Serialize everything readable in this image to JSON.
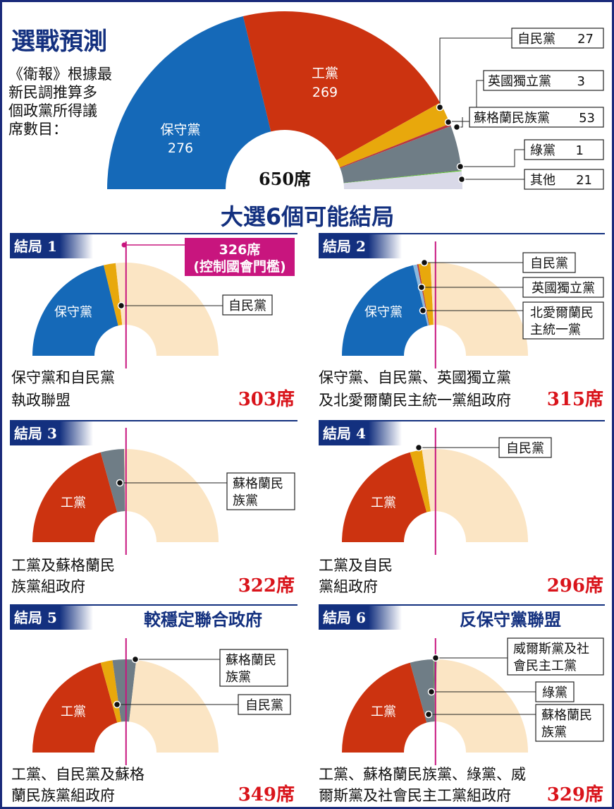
{
  "colors": {
    "conservative": "#1569b8",
    "labour": "#cc3310",
    "libdem": "#e8a80c",
    "ukip": "#b9363f",
    "snp": "#6f7d86",
    "green": "#5cbf2a",
    "other": "#d9d9e8",
    "dup": "#8bb8de",
    "remaining": "#fbe5c4",
    "navy": "#13307f",
    "magenta": "#c8157e",
    "red_text": "#d9141b"
  },
  "header": {
    "title": "選戰預測",
    "desc_lines": [
      "《衛報》根據最",
      "新民調推算多",
      "個政黨所得議",
      "席數目："
    ]
  },
  "chart_data": [
    {
      "type": "pie",
      "title": "選戰預測",
      "total_label": "650席",
      "total": 650,
      "slices": [
        {
          "name": "保守黨",
          "value": 276,
          "label_value": "276"
        },
        {
          "name": "工黨",
          "value": 269,
          "label_value": "269"
        },
        {
          "name": "自民黨",
          "value": 27,
          "label_value": "27"
        },
        {
          "name": "英國獨立黨",
          "value": 3,
          "label_value": "3"
        },
        {
          "name": "蘇格蘭民族黨",
          "value": 53,
          "label_value": "53"
        },
        {
          "name": "綠黨",
          "value": 1,
          "label_value": "1"
        },
        {
          "name": "其他",
          "value": 21,
          "label_value": "21"
        }
      ]
    },
    {
      "type": "pie",
      "panel": "結局 1",
      "slices": [
        {
          "name": "保守黨",
          "value": 276
        },
        {
          "name": "自民黨",
          "value": 27
        }
      ],
      "caption_lines": [
        "保守黨和自民黨",
        "執政聯盟"
      ],
      "total_label": "303席"
    },
    {
      "type": "pie",
      "panel": "結局 2",
      "slices": [
        {
          "name": "保守黨",
          "value": 276
        },
        {
          "name": "北愛爾蘭民主統一黨",
          "value": 9
        },
        {
          "name": "英國獨立黨",
          "value": 3
        },
        {
          "name": "自民黨",
          "value": 27
        }
      ],
      "caption_lines": [
        "保守黨、自民黨、英國獨立黨",
        "及北愛爾蘭民主統一黨組政府"
      ],
      "total_label": "315席"
    },
    {
      "type": "pie",
      "panel": "結局 3",
      "slices": [
        {
          "name": "工黨",
          "value": 269
        },
        {
          "name": "蘇格蘭民族黨",
          "value": 53
        }
      ],
      "caption_lines": [
        "工黨及蘇格蘭民",
        "族黨組政府"
      ],
      "total_label": "322席"
    },
    {
      "type": "pie",
      "panel": "結局 4",
      "slices": [
        {
          "name": "工黨",
          "value": 269
        },
        {
          "name": "自民黨",
          "value": 27
        }
      ],
      "caption_lines": [
        "工黨及自民",
        "黨組政府"
      ],
      "total_label": "296席"
    },
    {
      "type": "pie",
      "panel": "結局 5",
      "subtitle": "較穩定聯合政府",
      "slices": [
        {
          "name": "工黨",
          "value": 269
        },
        {
          "name": "自民黨",
          "value": 27
        },
        {
          "name": "蘇格蘭民族黨",
          "value": 53
        }
      ],
      "caption_lines": [
        "工黨、自民黨及蘇格",
        "蘭民族黨組政府"
      ],
      "total_label": "349席"
    },
    {
      "type": "pie",
      "panel": "結局 6",
      "subtitle": "反保守黨聯盟",
      "slices": [
        {
          "name": "工黨",
          "value": 269
        },
        {
          "name": "蘇格蘭民族黨",
          "value": 53
        },
        {
          "name": "綠黨",
          "value": 1
        },
        {
          "name": "威爾斯黨及社會民主工黨",
          "value": 6
        }
      ],
      "caption_lines": [
        "工黨、蘇格蘭民族黨、綠黨、威",
        "爾斯黨及社會民主工黨組政府"
      ],
      "total_label": "329席"
    }
  ],
  "main_labels": [
    {
      "name": "自民黨",
      "value": "27"
    },
    {
      "name": "英國獨立黨",
      "value": "3"
    },
    {
      "name": "蘇格蘭民族黨",
      "value": "53"
    },
    {
      "name": "綠黨",
      "value": "1"
    },
    {
      "name": "其他",
      "value": "21"
    }
  ],
  "section_title": "大選6個可能結局",
  "threshold": {
    "line1": "326席",
    "line2": "(控制國會門檻)"
  },
  "panels": [
    {
      "label": "結局 1",
      "callouts": [
        {
          "lines": [
            "自民黨"
          ]
        }
      ],
      "inner_labels": [
        "保守黨"
      ]
    },
    {
      "label": "結局 2",
      "callouts": [
        {
          "lines": [
            "自民黨"
          ]
        },
        {
          "lines": [
            "英國獨立黨"
          ]
        },
        {
          "lines": [
            "北愛爾蘭民",
            "主統一黨"
          ]
        }
      ],
      "inner_labels": [
        "保守黨"
      ]
    },
    {
      "label": "結局 3",
      "callouts": [
        {
          "lines": [
            "蘇格蘭民",
            "族黨"
          ]
        }
      ],
      "inner_labels": [
        "工黨"
      ]
    },
    {
      "label": "結局 4",
      "callouts": [
        {
          "lines": [
            "自民黨"
          ]
        }
      ],
      "inner_labels": [
        "工黨"
      ]
    },
    {
      "label": "結局 5",
      "callouts": [
        {
          "lines": [
            "蘇格蘭民",
            "族黨"
          ]
        },
        {
          "lines": [
            "自民黨"
          ]
        }
      ],
      "inner_labels": [
        "工黨"
      ]
    },
    {
      "label": "結局 6",
      "callouts": [
        {
          "lines": [
            "威爾斯黨及社",
            "會民主工黨"
          ]
        },
        {
          "lines": [
            "綠黨"
          ]
        },
        {
          "lines": [
            "蘇格蘭民",
            "族黨"
          ]
        }
      ],
      "inner_labels": [
        "工黨"
      ]
    }
  ]
}
